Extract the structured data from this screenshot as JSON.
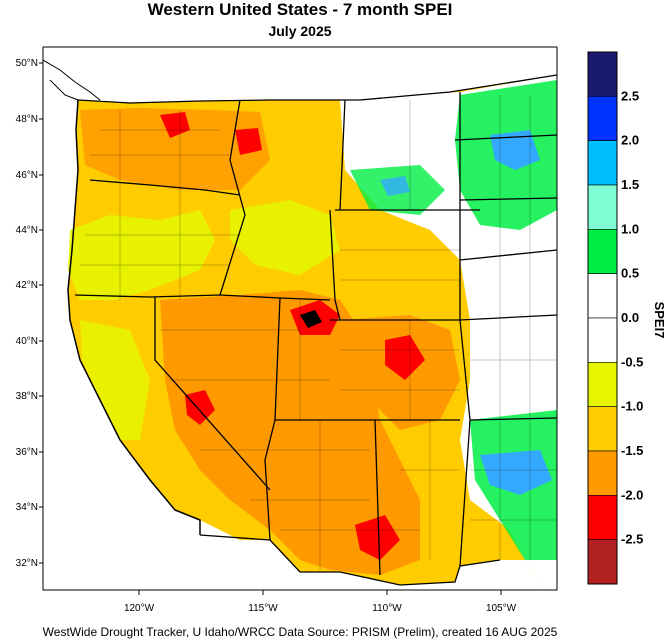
{
  "header": {
    "title": "Western United States - 7 month SPEI",
    "subtitle": "July 2025"
  },
  "footer": {
    "credit": "WestWide Drought Tracker, U Idaho/WRCC Data Source: PRISM (Prelim), created 16 AUG 2025"
  },
  "map": {
    "latitude_labels": [
      "50°N",
      "48°N",
      "46°N",
      "44°N",
      "42°N",
      "40°N",
      "38°N",
      "36°N",
      "34°N",
      "32°N"
    ],
    "longitude_labels": [
      "120°W",
      "115°W",
      "110°W",
      "105°W"
    ],
    "dominant_condition_colors": {
      "dry_west": "#ffcc00",
      "very_dry_southwest": "#ff9900",
      "extreme_dry_spots": "#ff0000",
      "wet_east": "#00e640",
      "very_wet_spots": "#33aaff"
    }
  },
  "colorbar": {
    "title": "SPEI7",
    "tick_labels": [
      "2.5",
      "2.0",
      "1.5",
      "1.0",
      "0.5",
      "0.0",
      "-0.5",
      "-1.0",
      "-1.5",
      "-2.0",
      "-2.5"
    ],
    "colors_top_to_bottom": [
      "#1a1a6e",
      "#0033ff",
      "#00bfff",
      "#80ffd4",
      "#00ee44",
      "#ffffff",
      "#ffffff",
      "#e6f500",
      "#ffcc00",
      "#ff9900",
      "#ff0000",
      "#b22222"
    ]
  }
}
